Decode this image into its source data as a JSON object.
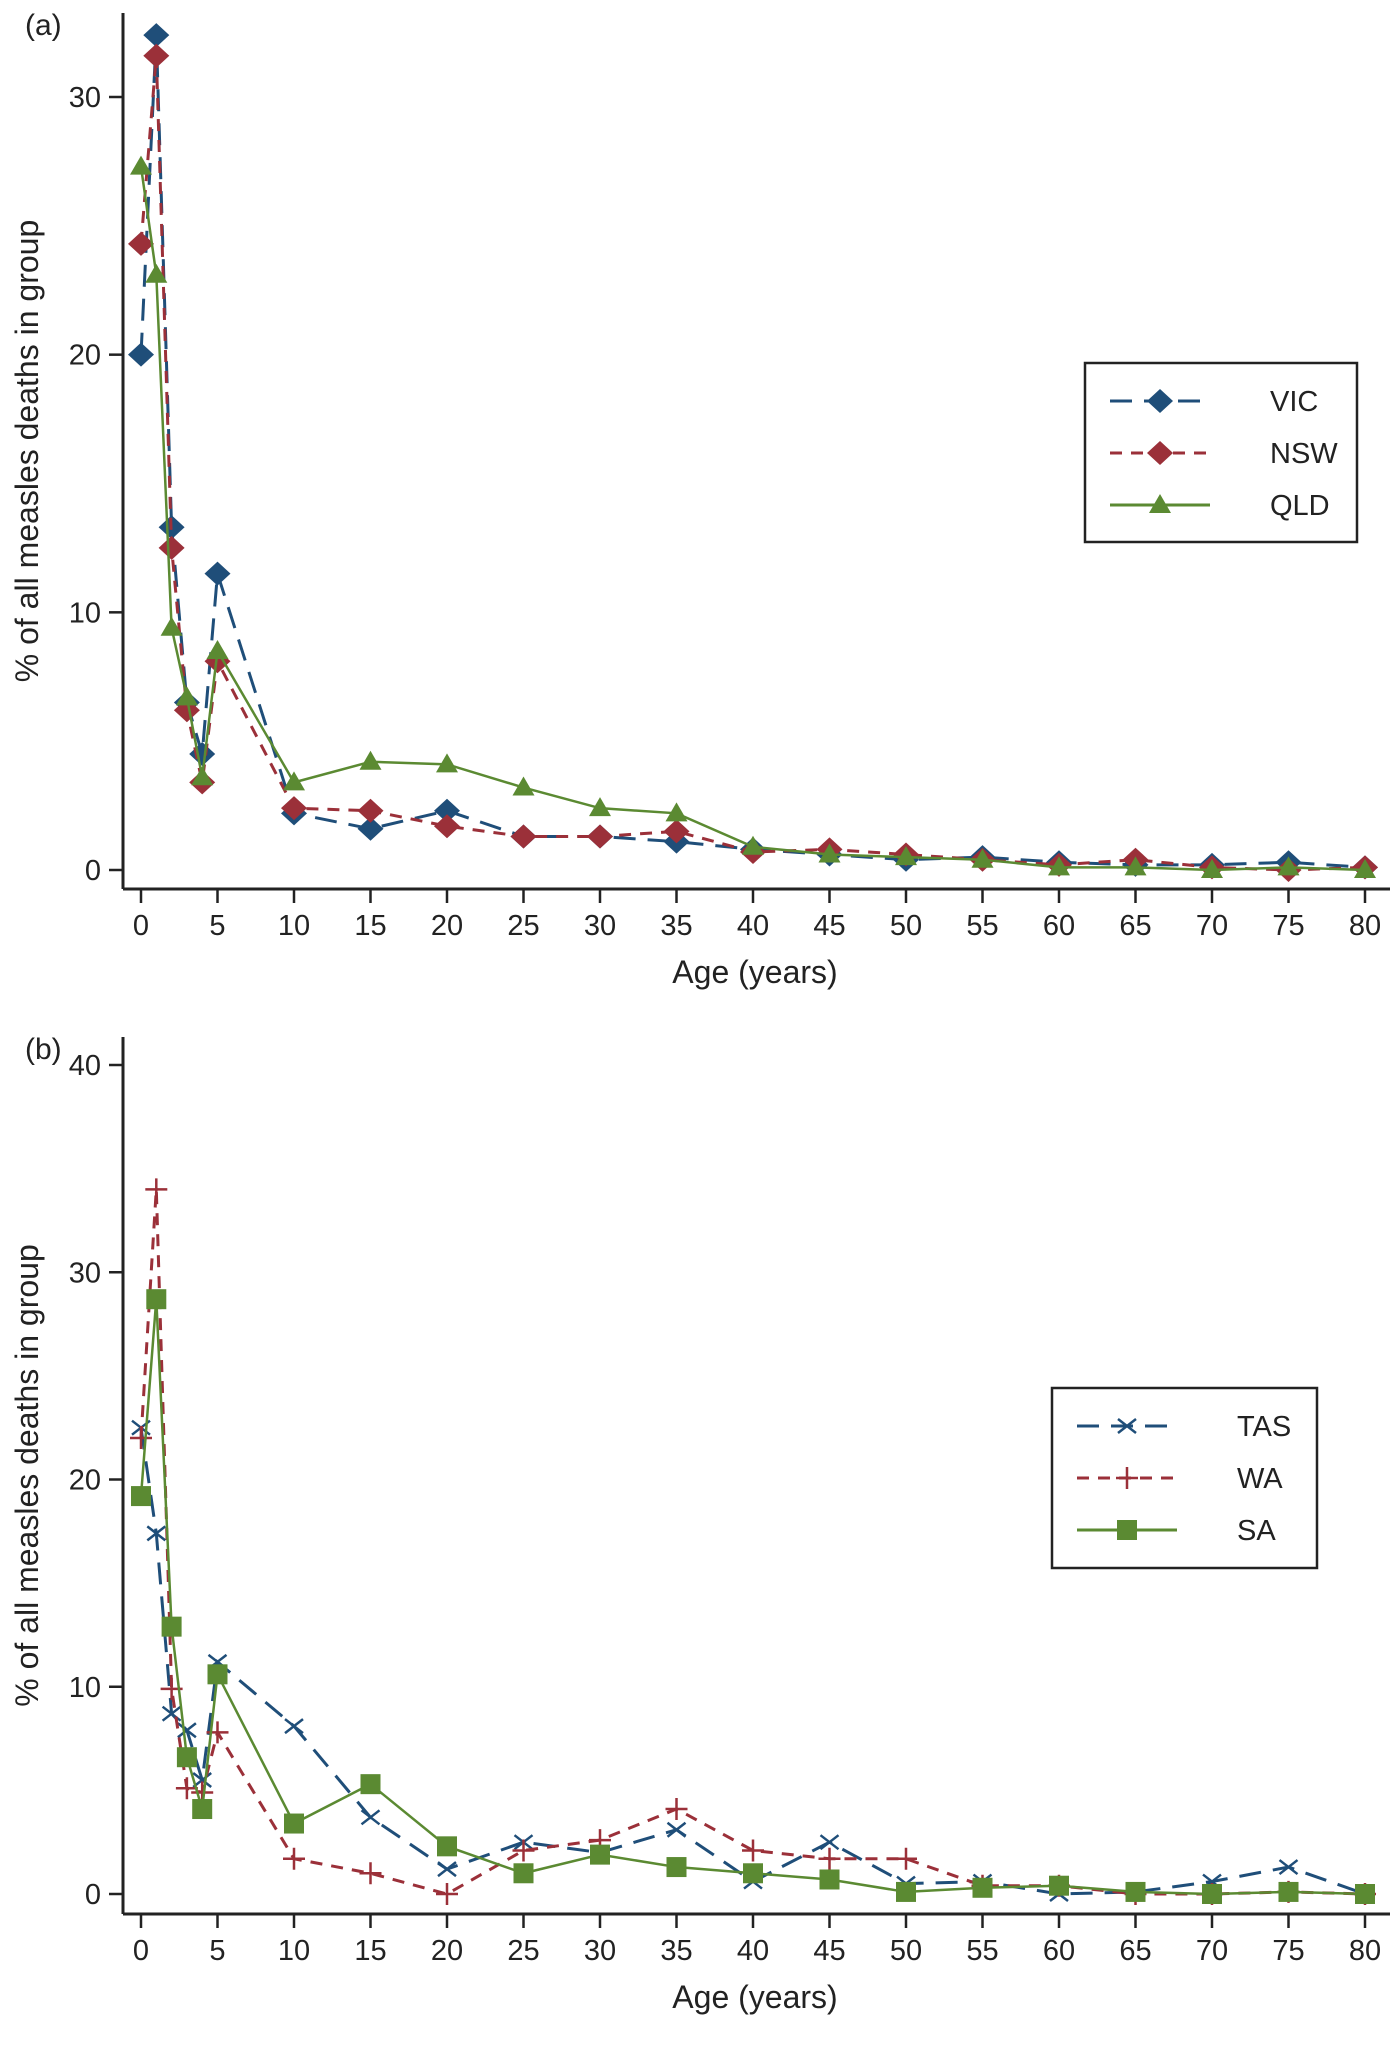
{
  "chart_data": [
    {
      "type": "line",
      "panel_label": "(a)",
      "panel_letter": "a",
      "xlabel": "Age (years)",
      "ylabel": "% of all measles deaths in group",
      "x": [
        0,
        1,
        2,
        3,
        4,
        5,
        10,
        15,
        20,
        25,
        30,
        35,
        40,
        45,
        50,
        55,
        60,
        65,
        70,
        75,
        80
      ],
      "x_ticks": [
        0,
        5,
        10,
        15,
        20,
        25,
        30,
        35,
        40,
        45,
        50,
        55,
        60,
        65,
        70,
        75,
        80
      ],
      "y_ticks": [
        0,
        10,
        20,
        30
      ],
      "ylim": [
        0,
        32.4
      ],
      "xlim": [
        0,
        80
      ],
      "grid": false,
      "legend_position": "right",
      "series": [
        {
          "name": "VIC",
          "color": "#1f4e79",
          "dash": "long-dash",
          "marker": "diamond",
          "values": [
            20,
            32.4,
            13.3,
            6.5,
            4.5,
            11.5,
            2.2,
            1.6,
            2.3,
            1.3,
            1.3,
            1.1,
            0.8,
            0.6,
            0.4,
            0.5,
            0.3,
            0.2,
            0.2,
            0.3,
            0.1
          ]
        },
        {
          "name": "NSW",
          "color": "#9b3039",
          "dash": "short-dash",
          "marker": "diamond",
          "values": [
            24.3,
            31.6,
            12.5,
            6.2,
            3.4,
            8.1,
            2.4,
            2.3,
            1.7,
            1.3,
            1.3,
            1.5,
            0.7,
            0.8,
            0.6,
            0.4,
            0.2,
            0.4,
            0.1,
            0,
            0.1
          ]
        },
        {
          "name": "QLD",
          "color": "#5b8a32",
          "dash": "solid",
          "marker": "triangle",
          "values": [
            27.3,
            23.1,
            9.4,
            6.7,
            3.6,
            8.5,
            3.4,
            4.2,
            4.1,
            3.2,
            2.4,
            2.2,
            0.9,
            0.6,
            0.5,
            0.4,
            0.1,
            0.1,
            0,
            0.1,
            0
          ]
        }
      ]
    },
    {
      "type": "line",
      "panel_label": "(b)",
      "panel_letter": "b",
      "xlabel": "Age (years)",
      "ylabel": "% of all measles deaths in group",
      "x": [
        0,
        1,
        2,
        3,
        4,
        5,
        10,
        15,
        20,
        25,
        30,
        35,
        40,
        45,
        50,
        55,
        60,
        65,
        70,
        75,
        80
      ],
      "x_ticks": [
        0,
        5,
        10,
        15,
        20,
        25,
        30,
        35,
        40,
        45,
        50,
        55,
        60,
        65,
        70,
        75,
        80
      ],
      "y_ticks": [
        0,
        10,
        20,
        30,
        40
      ],
      "ylim": [
        0,
        40
      ],
      "xlim": [
        0,
        80
      ],
      "grid": false,
      "legend_position": "right",
      "series": [
        {
          "name": "TAS",
          "color": "#1f4e79",
          "dash": "long-dash",
          "marker": "x",
          "values": [
            22.5,
            17.4,
            8.7,
            7.9,
            5.5,
            11.2,
            8.1,
            3.7,
            1.2,
            2.5,
            2.0,
            3.1,
            0.6,
            2.5,
            0.5,
            0.6,
            0,
            0.1,
            0.6,
            1.3,
            0
          ]
        },
        {
          "name": "WA",
          "color": "#9b3039",
          "dash": "short-dash",
          "marker": "plus",
          "values": [
            22,
            34,
            9.9,
            5.1,
            4.9,
            7.8,
            1.7,
            1.0,
            0,
            2.1,
            2.6,
            4.1,
            2.1,
            1.7,
            1.7,
            0.4,
            0.4,
            0,
            0,
            0.1,
            0
          ]
        },
        {
          "name": "SA",
          "color": "#5b8a32",
          "dash": "solid",
          "marker": "square",
          "values": [
            19.2,
            28.7,
            12.9,
            6.6,
            4.1,
            10.6,
            3.4,
            5.3,
            2.3,
            1.0,
            1.9,
            1.3,
            1.0,
            0.7,
            0.1,
            0.3,
            0.4,
            0.1,
            0,
            0.1,
            0
          ]
        }
      ]
    }
  ]
}
